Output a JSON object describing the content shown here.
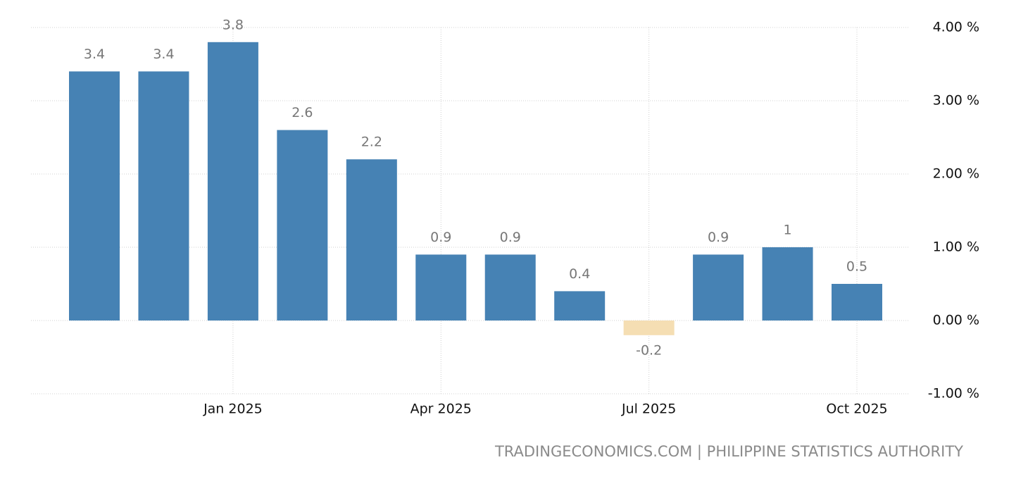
{
  "chart_data": {
    "type": "bar",
    "categories": [
      null,
      null,
      "Jan 2025",
      null,
      null,
      "Apr 2025",
      null,
      null,
      "Jul 2025",
      null,
      null,
      "Oct 2025"
    ],
    "values": [
      3.4,
      3.4,
      3.8,
      2.6,
      2.2,
      0.9,
      0.9,
      0.4,
      -0.2,
      0.9,
      1,
      0.5
    ],
    "color": "#4682b4",
    "negative_color": "#f5deb3",
    "ylim": [
      -1,
      4
    ],
    "yticks": [
      {
        "value": -1,
        "label": "-1.00 %"
      },
      {
        "value": 0,
        "label": "0.00 %"
      },
      {
        "value": 1,
        "label": "1.00 %"
      },
      {
        "value": 2,
        "label": "2.00 %"
      },
      {
        "value": 3,
        "label": "3.00 %"
      },
      {
        "value": 4,
        "label": "4.00 %"
      }
    ],
    "grid": true,
    "source": "TRADINGECONOMICS.COM | PHILIPPINE STATISTICS AUTHORITY"
  }
}
